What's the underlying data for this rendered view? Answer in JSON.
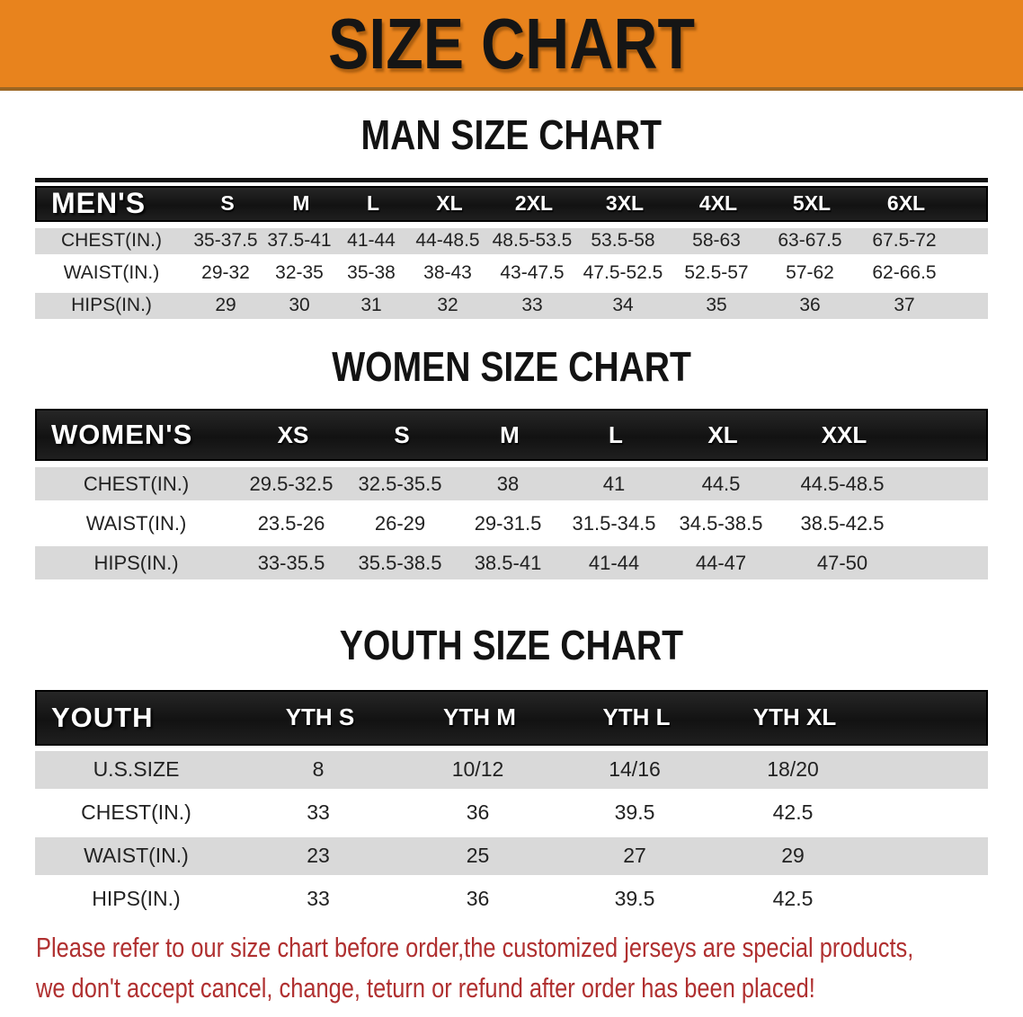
{
  "banner": {
    "title": "SIZE CHART"
  },
  "chart_data": [
    {
      "type": "table",
      "id": "men",
      "title": "MAN SIZE CHART",
      "corner_label": "MEN'S",
      "columns": [
        "S",
        "M",
        "L",
        "XL",
        "2XL",
        "3XL",
        "4XL",
        "5XL",
        "6XL"
      ],
      "rows": [
        {
          "label": "CHEST(IN.)",
          "values": [
            "35-37.5",
            "37.5-41",
            "41-44",
            "44-48.5",
            "48.5-53.5",
            "53.5-58",
            "58-63",
            "63-67.5",
            "67.5-72"
          ]
        },
        {
          "label": "WAIST(IN.)",
          "values": [
            "29-32",
            "32-35",
            "35-38",
            "38-43",
            "43-47.5",
            "47.5-52.5",
            "52.5-57",
            "57-62",
            "62-66.5"
          ]
        },
        {
          "label": "HIPS(IN.)",
          "values": [
            "29",
            "30",
            "31",
            "32",
            "33",
            "34",
            "35",
            "36",
            "37"
          ]
        }
      ]
    },
    {
      "type": "table",
      "id": "women",
      "title": "WOMEN SIZE CHART",
      "corner_label": "WOMEN'S",
      "columns": [
        "XS",
        "S",
        "M",
        "L",
        "XL",
        "XXL"
      ],
      "rows": [
        {
          "label": "CHEST(IN.)",
          "values": [
            "29.5-32.5",
            "32.5-35.5",
            "38",
            "41",
            "44.5",
            "44.5-48.5"
          ]
        },
        {
          "label": "WAIST(IN.)",
          "values": [
            "23.5-26",
            "26-29",
            "29-31.5",
            "31.5-34.5",
            "34.5-38.5",
            "38.5-42.5"
          ]
        },
        {
          "label": "HIPS(IN.)",
          "values": [
            "33-35.5",
            "35.5-38.5",
            "38.5-41",
            "41-44",
            "44-47",
            "47-50"
          ]
        }
      ]
    },
    {
      "type": "table",
      "id": "youth",
      "title": "YOUTH SIZE CHART",
      "corner_label": "YOUTH",
      "columns": [
        "YTH S",
        "YTH M",
        "YTH L",
        "YTH XL"
      ],
      "rows": [
        {
          "label": "U.S.SIZE",
          "values": [
            "8",
            "10/12",
            "14/16",
            "18/20"
          ]
        },
        {
          "label": "CHEST(IN.)",
          "values": [
            "33",
            "36",
            "39.5",
            "42.5"
          ]
        },
        {
          "label": "WAIST(IN.)",
          "values": [
            "23",
            "25",
            "27",
            "29"
          ]
        },
        {
          "label": "HIPS(IN.)",
          "values": [
            "33",
            "36",
            "39.5",
            "42.5"
          ]
        }
      ]
    }
  ],
  "footer": {
    "lines": [
      "Please refer to our size chart before order,the customized jerseys are special products,",
      "we don't accept cancel, change, teturn or refund after order has been placed!"
    ]
  },
  "colors": {
    "banner_orange": "#E8831D",
    "band_black": "#1b1b1b",
    "row_gray": "#D9D9D9",
    "disclaimer_red": "#B03030"
  }
}
